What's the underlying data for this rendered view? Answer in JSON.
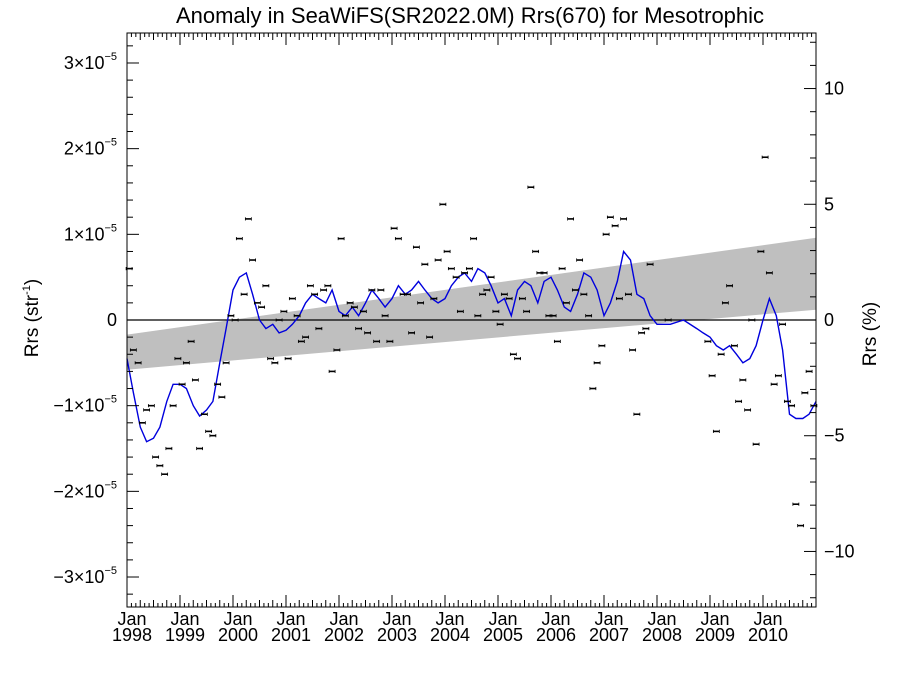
{
  "chart_data": {
    "type": "line",
    "title": "Anomaly in SeaWiFS(SR2022.0M) Rrs(670) for Mesotrophic",
    "ylabel": "Rrs (str",
    "ylabel_exp": "-1",
    "ylabel_close": ")",
    "y2label": "Rrs (%)",
    "xlim": [
      1998.0,
      2011.0
    ],
    "ylim": [
      -3.35e-05,
      3.35e-05
    ],
    "y2lim": [
      -12.4,
      12.4
    ],
    "y_ticks": [
      {
        "value": -3e-05,
        "mant": "−3×10",
        "exp": "−5"
      },
      {
        "value": -2e-05,
        "mant": "−2×10",
        "exp": "−5"
      },
      {
        "value": -1e-05,
        "mant": "−1×10",
        "exp": "−5"
      },
      {
        "value": 0,
        "mant": "0",
        "exp": ""
      },
      {
        "value": 1e-05,
        "mant": "1×10",
        "exp": "−5"
      },
      {
        "value": 2e-05,
        "mant": "2×10",
        "exp": "−5"
      },
      {
        "value": 3e-05,
        "mant": "3×10",
        "exp": "−5"
      }
    ],
    "y2_ticks": [
      {
        "value": -10,
        "label": "−10"
      },
      {
        "value": -5,
        "label": "−5"
      },
      {
        "value": 0,
        "label": "0"
      },
      {
        "value": 5,
        "label": "5"
      },
      {
        "value": 10,
        "label": "10"
      }
    ],
    "x_ticks": [
      {
        "value": 1998,
        "month": "Jan",
        "year": "1998"
      },
      {
        "value": 1999,
        "month": "Jan",
        "year": "1999"
      },
      {
        "value": 2000,
        "month": "Jan",
        "year": "2000"
      },
      {
        "value": 2001,
        "month": "Jan",
        "year": "2001"
      },
      {
        "value": 2002,
        "month": "Jan",
        "year": "2002"
      },
      {
        "value": 2003,
        "month": "Jan",
        "year": "2003"
      },
      {
        "value": 2004,
        "month": "Jan",
        "year": "2004"
      },
      {
        "value": 2005,
        "month": "Jan",
        "year": "2005"
      },
      {
        "value": 2006,
        "month": "Jan",
        "year": "2006"
      },
      {
        "value": 2007,
        "month": "Jan",
        "year": "2007"
      },
      {
        "value": 2008,
        "month": "Jan",
        "year": "2008"
      },
      {
        "value": 2009,
        "month": "Jan",
        "year": "2009"
      },
      {
        "value": 2010,
        "month": "Jan",
        "year": "2010"
      }
    ],
    "grid": false,
    "legend": "none",
    "colors": {
      "line": "#0000dd",
      "band": "#bfbfbf",
      "points": "#000000",
      "zero_line": "#000000"
    },
    "trend_band": {
      "x": [
        1998.0,
        2011.0
      ],
      "upper": [
        -1.7e-06,
        9.6e-06
      ],
      "lower": [
        -5.8e-06,
        1.2e-06
      ]
    },
    "series": [
      {
        "kind": "monthly_anomaly_points",
        "x": [
          1998.04,
          1998.12,
          1998.21,
          1998.29,
          1998.37,
          1998.46,
          1998.54,
          1998.62,
          1998.71,
          1998.79,
          1998.87,
          1998.96,
          1999.04,
          1999.12,
          1999.21,
          1999.29,
          1999.37,
          1999.46,
          1999.54,
          1999.62,
          1999.71,
          1999.79,
          1999.87,
          1999.96,
          2000.04,
          2000.12,
          2000.21,
          2000.29,
          2000.37,
          2000.46,
          2000.54,
          2000.62,
          2000.71,
          2000.79,
          2000.87,
          2000.96,
          2001.04,
          2001.12,
          2001.21,
          2001.29,
          2001.37,
          2001.46,
          2001.54,
          2001.62,
          2001.71,
          2001.79,
          2001.87,
          2001.96,
          2002.04,
          2002.12,
          2002.21,
          2002.29,
          2002.37,
          2002.46,
          2002.54,
          2002.62,
          2002.71,
          2002.79,
          2002.87,
          2002.96,
          2003.04,
          2003.12,
          2003.21,
          2003.29,
          2003.37,
          2003.46,
          2003.54,
          2003.62,
          2003.71,
          2003.79,
          2003.87,
          2003.96,
          2004.04,
          2004.12,
          2004.21,
          2004.29,
          2004.37,
          2004.46,
          2004.54,
          2004.62,
          2004.71,
          2004.79,
          2004.87,
          2004.96,
          2005.04,
          2005.12,
          2005.21,
          2005.29,
          2005.37,
          2005.46,
          2005.54,
          2005.62,
          2005.71,
          2005.79,
          2005.87,
          2005.96,
          2006.04,
          2006.12,
          2006.21,
          2006.29,
          2006.37,
          2006.46,
          2006.54,
          2006.62,
          2006.71,
          2006.79,
          2006.87,
          2006.96,
          2007.04,
          2007.12,
          2007.21,
          2007.29,
          2007.37,
          2007.46,
          2007.54,
          2007.62,
          2007.71,
          2007.79,
          2007.87,
          2008.21,
          2008.96,
          2009.04,
          2009.12,
          2009.21,
          2009.29,
          2009.37,
          2009.46,
          2009.54,
          2009.62,
          2009.71,
          2009.79,
          2009.87,
          2009.96,
          2010.04,
          2010.12,
          2010.21,
          2010.29,
          2010.37,
          2010.46,
          2010.54,
          2010.62,
          2010.71,
          2010.79,
          2010.87,
          2010.96
        ],
        "y": [
          6e-06,
          -3.5e-06,
          -5e-06,
          -1.2e-05,
          -1.05e-05,
          -1e-05,
          -1.6e-05,
          -1.7e-05,
          -1.8e-05,
          -1.5e-05,
          -1e-05,
          -4.5e-06,
          -7.5e-06,
          -5e-06,
          -2.5e-06,
          -7e-06,
          -1.5e-05,
          -1.1e-05,
          -1.3e-05,
          -1.35e-05,
          -7.5e-06,
          -9e-06,
          -5e-06,
          5e-07,
          0.0,
          9.5e-06,
          3e-06,
          1.18e-05,
          7e-06,
          2e-06,
          1.5e-06,
          4e-06,
          -4.5e-06,
          -5e-06,
          -0.0,
          1e-06,
          -4.5e-06,
          2.5e-06,
          5e-07,
          -2.5e-06,
          -2e-06,
          4e-06,
          3e-06,
          -1e-06,
          3.5e-06,
          4e-06,
          -6e-06,
          -3.5e-06,
          9.5e-06,
          5e-07,
          2e-06,
          1.5e-06,
          -1e-06,
          1e-06,
          -1.5e-06,
          3.5e-06,
          -2.5e-06,
          3.5e-06,
          5e-07,
          -2.5e-06,
          1.07e-05,
          9.5e-06,
          3e-06,
          3e-06,
          -1.5e-06,
          8.5e-06,
          2e-06,
          6.5e-06,
          -2e-06,
          2.5e-06,
          7e-06,
          1.35e-05,
          8e-06,
          6e-06,
          5e-06,
          1e-06,
          5.5e-06,
          6e-06,
          9.5e-06,
          5e-07,
          3e-06,
          3.5e-06,
          5e-06,
          1e-06,
          -5e-07,
          3e-06,
          2.5e-06,
          -4e-06,
          -4.5e-06,
          2.5e-06,
          1e-06,
          1.55e-05,
          8e-06,
          5.5e-06,
          5.5e-06,
          5e-07,
          5e-07,
          -2.5e-06,
          6e-06,
          2e-06,
          1.18e-05,
          3.5e-06,
          7e-06,
          3e-06,
          5e-07,
          -8e-06,
          -5e-06,
          -3e-06,
          1e-05,
          1.2e-05,
          1.1e-05,
          2.5e-06,
          1.18e-05,
          3e-06,
          -3.5e-06,
          -1.1e-05,
          -1.5e-06,
          -1e-06,
          6.5e-06,
          -0.0,
          -2.5e-06,
          -6.5e-06,
          -1.3e-05,
          -4e-06,
          2e-06,
          4e-06,
          -3e-06,
          -9.5e-06,
          -7e-06,
          -1.05e-05,
          -0.0,
          -1.45e-05,
          8e-06,
          1.9e-05,
          5.5e-06,
          -7.5e-06,
          -6.5e-06,
          -5e-07,
          -9.5e-06,
          -1e-05,
          -2.15e-05,
          -2.4e-05,
          -8.5e-06,
          -6e-06,
          -1e-05
        ]
      },
      {
        "kind": "running_mean_line",
        "x": [
          1998.0,
          1998.12,
          1998.25,
          1998.37,
          1998.5,
          1998.62,
          1998.75,
          1998.87,
          1999.0,
          1999.12,
          1999.25,
          1999.37,
          1999.5,
          1999.62,
          1999.75,
          1999.87,
          2000.0,
          2000.12,
          2000.25,
          2000.37,
          2000.5,
          2000.62,
          2000.75,
          2000.87,
          2001.0,
          2001.12,
          2001.25,
          2001.37,
          2001.5,
          2001.62,
          2001.75,
          2001.87,
          2002.0,
          2002.12,
          2002.25,
          2002.37,
          2002.5,
          2002.62,
          2002.75,
          2002.87,
          2003.0,
          2003.12,
          2003.25,
          2003.37,
          2003.5,
          2003.62,
          2003.75,
          2003.87,
          2004.0,
          2004.12,
          2004.25,
          2004.37,
          2004.5,
          2004.62,
          2004.75,
          2004.87,
          2005.0,
          2005.12,
          2005.25,
          2005.37,
          2005.5,
          2005.62,
          2005.75,
          2005.87,
          2006.0,
          2006.12,
          2006.25,
          2006.37,
          2006.5,
          2006.62,
          2006.75,
          2006.87,
          2007.0,
          2007.12,
          2007.25,
          2007.37,
          2007.5,
          2007.62,
          2007.75,
          2007.87,
          2008.0,
          2008.25,
          2008.5,
          2008.75,
          2008.87,
          2009.0,
          2009.12,
          2009.25,
          2009.37,
          2009.5,
          2009.62,
          2009.75,
          2009.87,
          2010.0,
          2010.12,
          2010.25,
          2010.37,
          2010.5,
          2010.62,
          2010.75,
          2010.87,
          2011.0
        ],
        "y": [
          -4.5e-06,
          -8.5e-06,
          -1.25e-05,
          -1.42e-05,
          -1.38e-05,
          -1.25e-05,
          -9.5e-06,
          -7.5e-06,
          -7.5e-06,
          -8e-06,
          -1e-05,
          -1.12e-05,
          -1.05e-05,
          -9.5e-06,
          -5e-06,
          -1e-06,
          3.5e-06,
          5e-06,
          5.5e-06,
          3e-06,
          0.0,
          -1e-06,
          -5e-07,
          -1.5e-06,
          -1.2e-06,
          -5e-07,
          5e-07,
          2e-06,
          3e-06,
          2.5e-06,
          2e-06,
          3.5e-06,
          1e-06,
          5e-07,
          1.5e-06,
          5e-07,
          2e-06,
          3.5e-06,
          2.5e-06,
          1.5e-06,
          2.5e-06,
          4e-06,
          3e-06,
          3.5e-06,
          4.5e-06,
          3.5e-06,
          2.5e-06,
          2e-06,
          2.5e-06,
          4e-06,
          5e-06,
          5.5e-06,
          4.5e-06,
          6e-06,
          5.5e-06,
          4e-06,
          2e-06,
          2.5e-06,
          5e-07,
          3.5e-06,
          4.5e-06,
          4e-06,
          2e-06,
          4.5e-06,
          5e-06,
          3.5e-06,
          1.5e-06,
          1e-06,
          3e-06,
          5.5e-06,
          5e-06,
          3.5e-06,
          5e-07,
          2e-06,
          4.5e-06,
          8e-06,
          7e-06,
          3e-06,
          2.5e-06,
          5e-07,
          -5e-07,
          -5e-07,
          0.0,
          -1e-06,
          -1.5e-06,
          -2e-06,
          -3e-06,
          -3.5e-06,
          -3e-06,
          -4e-06,
          -5e-06,
          -4.5e-06,
          -3e-06,
          0.0,
          2.5e-06,
          5e-07,
          -3.5e-06,
          -1.1e-05,
          -1.15e-05,
          -1.15e-05,
          -1.1e-05,
          -9.5e-06
        ]
      }
    ]
  }
}
